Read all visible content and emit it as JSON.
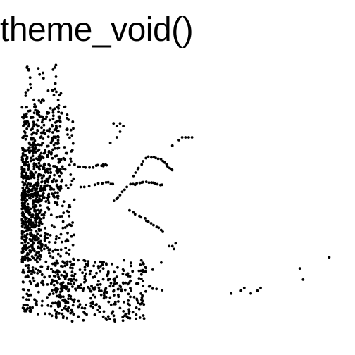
{
  "chart_data": {
    "type": "scatter",
    "title": "theme_void()",
    "xlabel": "",
    "ylabel": "",
    "grid": false,
    "axes_visible": false,
    "legend": "none",
    "point_color": "#000000",
    "xlim": [
      0,
      100
    ],
    "ylim": [
      0,
      100
    ],
    "clusters": [
      {
        "x": [
          2,
          18
        ],
        "y": [
          10,
          85
        ],
        "n": 560
      },
      {
        "x": [
          2,
          8
        ],
        "y": [
          30,
          55
        ],
        "n": 220
      },
      {
        "x": [
          2,
          14
        ],
        "y": [
          52,
          70
        ],
        "n": 180
      },
      {
        "x": [
          3,
          14
        ],
        "y": [
          68,
          100
        ],
        "n": 90
      },
      {
        "x": [
          12,
          40
        ],
        "y": [
          8,
          30
        ],
        "n": 260
      },
      {
        "x": [
          20,
          45
        ],
        "y": [
          18,
          30
        ],
        "n": 40
      },
      {
        "x": [
          30,
          42
        ],
        "y": [
          14,
          22
        ],
        "n": 20
      }
    ],
    "curves": [
      {
        "x": [
          30,
          35,
          40,
          45
        ],
        "y": [
          51,
          57,
          58,
          57
        ],
        "n": 22
      },
      {
        "x": [
          36,
          40,
          45,
          48
        ],
        "y": [
          60,
          67,
          66,
          62
        ],
        "n": 20
      },
      {
        "x": [
          35,
          39,
          42,
          45
        ],
        "y": [
          48,
          45,
          43,
          40
        ],
        "n": 14
      },
      {
        "x": [
          18,
          22,
          26,
          28
        ],
        "y": [
          64,
          63,
          64,
          64
        ],
        "n": 14
      },
      {
        "x": [
          20,
          24,
          28,
          30
        ],
        "y": [
          56,
          57,
          58,
          57
        ],
        "n": 10
      }
    ],
    "points": [
      {
        "x": 3.5,
        "y": 99
      },
      {
        "x": 3.6,
        "y": 99.5
      },
      {
        "x": 30,
        "y": 79
      },
      {
        "x": 31,
        "y": 78
      },
      {
        "x": 32,
        "y": 79
      },
      {
        "x": 33,
        "y": 78
      },
      {
        "x": 32,
        "y": 76
      },
      {
        "x": 31,
        "y": 74
      },
      {
        "x": 29,
        "y": 72
      },
      {
        "x": 50,
        "y": 73
      },
      {
        "x": 51,
        "y": 74
      },
      {
        "x": 52,
        "y": 74
      },
      {
        "x": 53,
        "y": 74
      },
      {
        "x": 54,
        "y": 74
      },
      {
        "x": 48,
        "y": 71
      },
      {
        "x": 47,
        "y": 35
      },
      {
        "x": 48,
        "y": 35
      },
      {
        "x": 49,
        "y": 36
      },
      {
        "x": 48.5,
        "y": 34
      },
      {
        "x": 66,
        "y": 18
      },
      {
        "x": 69,
        "y": 19
      },
      {
        "x": 70,
        "y": 20
      },
      {
        "x": 72,
        "y": 18
      },
      {
        "x": 74,
        "y": 19
      },
      {
        "x": 75,
        "y": 20
      },
      {
        "x": 87,
        "y": 27
      },
      {
        "x": 88,
        "y": 23
      },
      {
        "x": 96,
        "y": 31
      }
    ]
  }
}
